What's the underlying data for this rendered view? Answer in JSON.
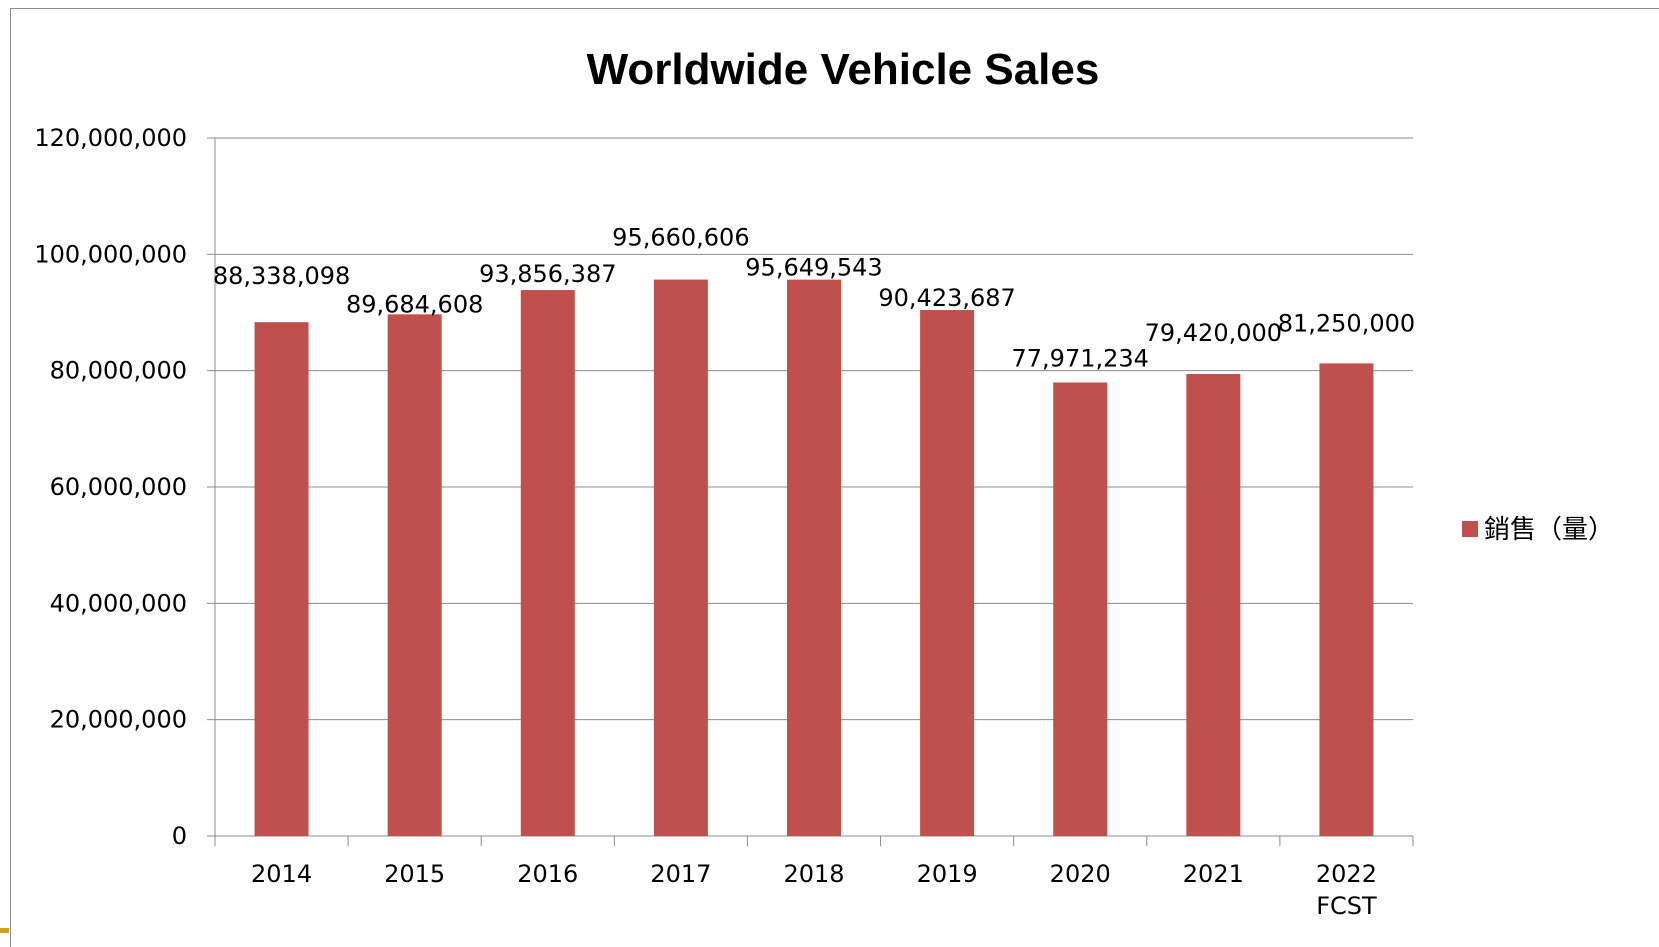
{
  "chart_data": {
    "type": "bar",
    "title": "Worldwide Vehicle Sales",
    "xlabel": "",
    "ylabel": "",
    "categories": [
      "2014",
      "2015",
      "2016",
      "2017",
      "2018",
      "2019",
      "2020",
      "2021",
      "2022\nFCST"
    ],
    "series": [
      {
        "name": "銷售（量）",
        "color": "#c0504d",
        "values": [
          88338098,
          89684608,
          93856387,
          95660606,
          95649543,
          90423687,
          77971234,
          79420000,
          81250000
        ],
        "labels": [
          "88,338,098",
          "89,684,608",
          "93,856,387",
          "95,660,606",
          "95,649,543",
          "90,423,687",
          "77,971,234",
          "79,420,000",
          "81,250,000"
        ]
      }
    ],
    "ylim": [
      0,
      120000000
    ],
    "yticks": [
      0,
      20000000,
      40000000,
      60000000,
      80000000,
      100000000,
      120000000
    ],
    "ytick_labels": [
      "0",
      "20,000,000",
      "40,000,000",
      "60,000,000",
      "80,000,000",
      "100,000,000",
      "120,000,000"
    ],
    "grid": true,
    "legend_position": "right"
  }
}
